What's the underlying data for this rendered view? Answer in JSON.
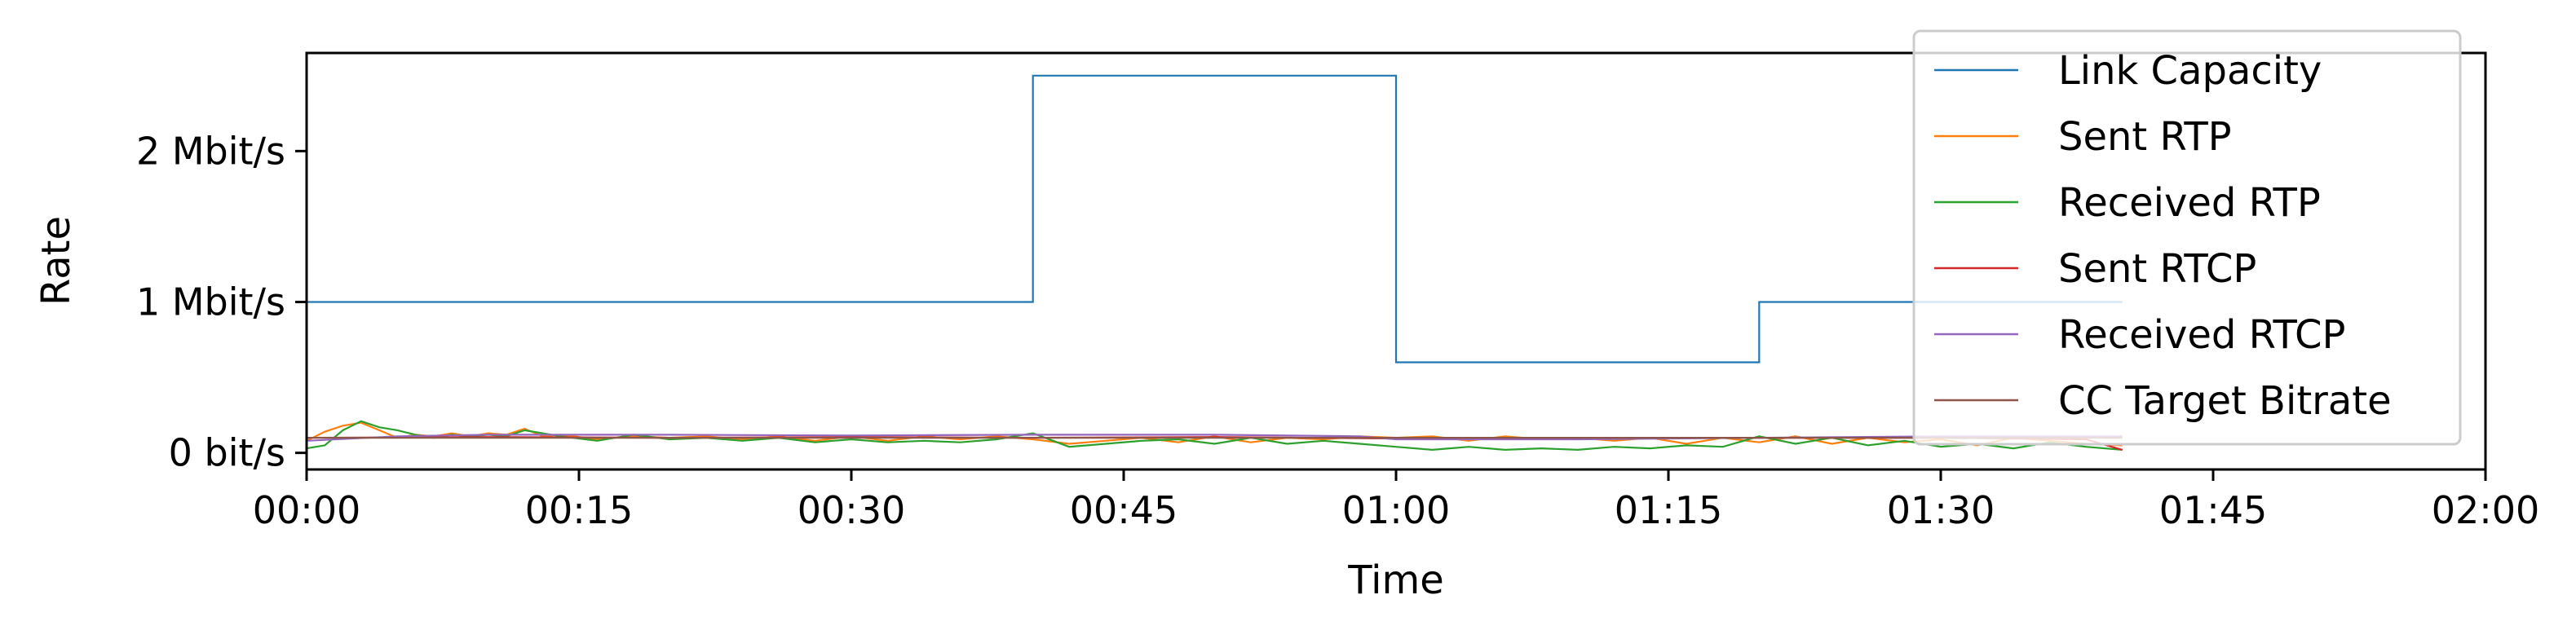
{
  "chart_data": {
    "type": "line",
    "title": "",
    "xlabel": "Time",
    "ylabel": "Rate",
    "x_unit": "seconds",
    "xlim": [
      0,
      120
    ],
    "ylim_bits_per_s": [
      -110000,
      2650000
    ],
    "x_ticks": [
      {
        "value": 0,
        "label": "00:00"
      },
      {
        "value": 15,
        "label": "00:15"
      },
      {
        "value": 30,
        "label": "00:30"
      },
      {
        "value": 45,
        "label": "00:45"
      },
      {
        "value": 60,
        "label": "01:00"
      },
      {
        "value": 75,
        "label": "01:15"
      },
      {
        "value": 90,
        "label": "01:30"
      },
      {
        "value": 105,
        "label": "01:45"
      },
      {
        "value": 120,
        "label": "02:00"
      }
    ],
    "y_ticks": [
      {
        "value": 0,
        "label": "0 bit/s"
      },
      {
        "value": 1000000,
        "label": "1 Mbit/s"
      },
      {
        "value": 2000000,
        "label": "2 Mbit/s"
      }
    ],
    "grid": false,
    "legend_position": "top-right",
    "series": [
      {
        "name": "Link Capacity",
        "color": "#1f77b4",
        "step": true,
        "points": [
          [
            0,
            1000000
          ],
          [
            40,
            1000000
          ],
          [
            40,
            2500000
          ],
          [
            60,
            2500000
          ],
          [
            60,
            600000
          ],
          [
            80,
            600000
          ],
          [
            80,
            1000000
          ],
          [
            100,
            1000000
          ]
        ]
      },
      {
        "name": "Sent RTP",
        "color": "#ff7f0e",
        "points": [
          [
            0,
            80000
          ],
          [
            1,
            140000
          ],
          [
            2,
            180000
          ],
          [
            3,
            200000
          ],
          [
            4,
            150000
          ],
          [
            5,
            100000
          ],
          [
            6,
            120000
          ],
          [
            7,
            110000
          ],
          [
            8,
            130000
          ],
          [
            9,
            110000
          ],
          [
            10,
            130000
          ],
          [
            11,
            120000
          ],
          [
            12,
            160000
          ],
          [
            13,
            110000
          ],
          [
            14,
            120000
          ],
          [
            16,
            90000
          ],
          [
            18,
            110000
          ],
          [
            20,
            100000
          ],
          [
            22,
            110000
          ],
          [
            24,
            90000
          ],
          [
            26,
            110000
          ],
          [
            28,
            80000
          ],
          [
            30,
            110000
          ],
          [
            32,
            80000
          ],
          [
            34,
            110000
          ],
          [
            36,
            90000
          ],
          [
            38,
            110000
          ],
          [
            40,
            90000
          ],
          [
            42,
            60000
          ],
          [
            44,
            80000
          ],
          [
            46,
            100000
          ],
          [
            48,
            70000
          ],
          [
            50,
            110000
          ],
          [
            52,
            70000
          ],
          [
            54,
            100000
          ],
          [
            56,
            90000
          ],
          [
            58,
            110000
          ],
          [
            60,
            100000
          ],
          [
            62,
            110000
          ],
          [
            64,
            80000
          ],
          [
            66,
            110000
          ],
          [
            68,
            90000
          ],
          [
            70,
            100000
          ],
          [
            72,
            80000
          ],
          [
            74,
            100000
          ],
          [
            76,
            60000
          ],
          [
            78,
            100000
          ],
          [
            80,
            70000
          ],
          [
            82,
            110000
          ],
          [
            84,
            60000
          ],
          [
            86,
            100000
          ],
          [
            88,
            70000
          ],
          [
            90,
            90000
          ],
          [
            92,
            50000
          ],
          [
            94,
            100000
          ],
          [
            96,
            80000
          ],
          [
            98,
            60000
          ],
          [
            100,
            50000
          ]
        ]
      },
      {
        "name": "Received RTP",
        "color": "#2ca02c",
        "points": [
          [
            0,
            30000
          ],
          [
            1,
            50000
          ],
          [
            2,
            150000
          ],
          [
            3,
            210000
          ],
          [
            4,
            170000
          ],
          [
            5,
            150000
          ],
          [
            6,
            120000
          ],
          [
            7,
            100000
          ],
          [
            8,
            120000
          ],
          [
            9,
            110000
          ],
          [
            10,
            120000
          ],
          [
            11,
            110000
          ],
          [
            12,
            150000
          ],
          [
            13,
            130000
          ],
          [
            14,
            110000
          ],
          [
            16,
            80000
          ],
          [
            18,
            120000
          ],
          [
            20,
            90000
          ],
          [
            22,
            100000
          ],
          [
            24,
            80000
          ],
          [
            26,
            100000
          ],
          [
            28,
            70000
          ],
          [
            30,
            90000
          ],
          [
            32,
            70000
          ],
          [
            34,
            80000
          ],
          [
            36,
            70000
          ],
          [
            38,
            90000
          ],
          [
            40,
            130000
          ],
          [
            42,
            40000
          ],
          [
            44,
            60000
          ],
          [
            46,
            80000
          ],
          [
            48,
            90000
          ],
          [
            50,
            60000
          ],
          [
            52,
            100000
          ],
          [
            54,
            60000
          ],
          [
            56,
            80000
          ],
          [
            58,
            60000
          ],
          [
            60,
            40000
          ],
          [
            62,
            20000
          ],
          [
            64,
            40000
          ],
          [
            66,
            20000
          ],
          [
            68,
            30000
          ],
          [
            70,
            20000
          ],
          [
            72,
            40000
          ],
          [
            74,
            30000
          ],
          [
            76,
            50000
          ],
          [
            78,
            40000
          ],
          [
            80,
            110000
          ],
          [
            82,
            60000
          ],
          [
            84,
            100000
          ],
          [
            86,
            50000
          ],
          [
            88,
            80000
          ],
          [
            90,
            40000
          ],
          [
            92,
            60000
          ],
          [
            94,
            30000
          ],
          [
            96,
            70000
          ],
          [
            98,
            40000
          ],
          [
            100,
            20000
          ]
        ]
      },
      {
        "name": "Sent RTCP",
        "color": "#d62728",
        "points": [
          [
            0,
            100000
          ],
          [
            10,
            105000
          ],
          [
            20,
            100000
          ],
          [
            30,
            105000
          ],
          [
            40,
            100000
          ],
          [
            50,
            105000
          ],
          [
            60,
            95000
          ],
          [
            70,
            95000
          ],
          [
            80,
            100000
          ],
          [
            90,
            100000
          ],
          [
            98,
            90000
          ],
          [
            100,
            20000
          ]
        ]
      },
      {
        "name": "Received RTCP",
        "color": "#9467bd",
        "points": [
          [
            0,
            80000
          ],
          [
            5,
            110000
          ],
          [
            10,
            120000
          ],
          [
            20,
            120000
          ],
          [
            30,
            115000
          ],
          [
            40,
            120000
          ],
          [
            50,
            120000
          ],
          [
            58,
            110000
          ],
          [
            60,
            90000
          ],
          [
            70,
            90000
          ],
          [
            80,
            100000
          ],
          [
            90,
            110000
          ],
          [
            100,
            110000
          ]
        ]
      },
      {
        "name": "CC Target Bitrate",
        "color": "#8c564b",
        "points": [
          [
            0,
            100000
          ],
          [
            10,
            100000
          ],
          [
            20,
            100000
          ],
          [
            30,
            100000
          ],
          [
            40,
            100000
          ],
          [
            50,
            100000
          ],
          [
            60,
            100000
          ],
          [
            70,
            100000
          ],
          [
            80,
            100000
          ],
          [
            90,
            100000
          ],
          [
            100,
            100000
          ]
        ]
      }
    ]
  }
}
